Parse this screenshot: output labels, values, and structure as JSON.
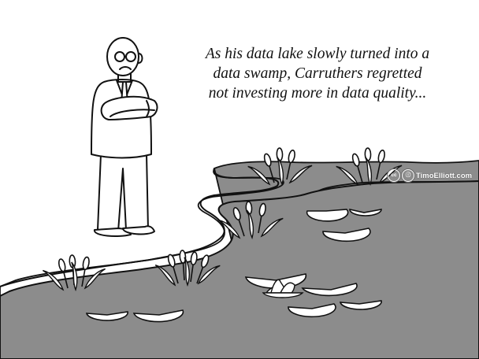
{
  "cartoon": {
    "caption_lines": [
      "As his data lake slowly turned into a",
      "data swamp, Carruthers regretted",
      "not investing more in data quality..."
    ],
    "credit": {
      "cc_mark": "cc",
      "attribution_mark": "ⓘ",
      "text": "TimoElliott.com"
    }
  },
  "colors": {
    "water": "#8c8c8c",
    "ink": "#111111",
    "paper": "#ffffff"
  }
}
